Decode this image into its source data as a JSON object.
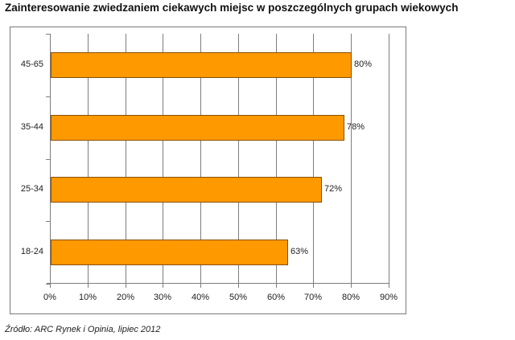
{
  "title": "Zainteresowanie zwiedzaniem ciekawych miejsc w poszczególnych grupach wiekowych",
  "source": "Źródło: ARC Rynek i Opinia, lipiec 2012",
  "bar_color": "#ff9900",
  "chart_data": {
    "type": "bar",
    "orientation": "horizontal",
    "title": "Zainteresowanie zwiedzaniem ciekawych miejsc w poszczególnych grupach wiekowych",
    "categories": [
      "45-65",
      "35-44",
      "25-34",
      "18-24"
    ],
    "values": [
      80,
      78,
      72,
      63
    ],
    "value_labels": [
      "80%",
      "78%",
      "72%",
      "63%"
    ],
    "xlabel": "",
    "ylabel": "",
    "xlim": [
      0,
      90
    ],
    "x_ticks": [
      "0%",
      "10%",
      "20%",
      "30%",
      "40%",
      "50%",
      "60%",
      "70%",
      "80%",
      "90%"
    ],
    "grid": true,
    "legend": "none"
  }
}
